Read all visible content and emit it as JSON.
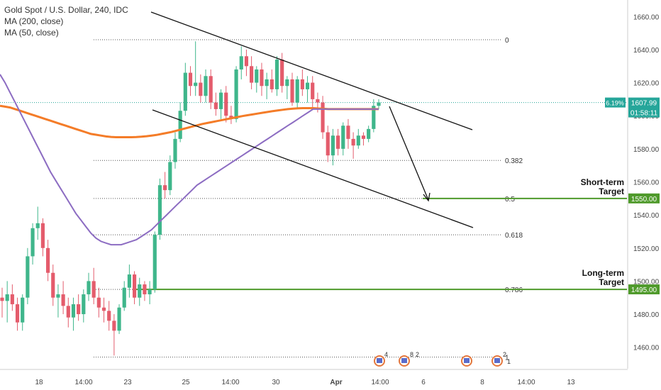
{
  "legend": {
    "title": "Gold Spot / U.S. Dollar, 240, IDC",
    "ma200": "MA (200, close)",
    "ma50": "MA (50, close)"
  },
  "colors": {
    "up": "#3fb68b",
    "down": "#e45c6c",
    "ma200": "#f47c28",
    "ma50": "#8c6cc2",
    "target": "#4f9a2b",
    "trend": "#111111",
    "fib": "#555555",
    "price_tag": "#26a69a"
  },
  "chart_data": {
    "type": "candlestick",
    "ylim": [
      1447,
      1670
    ],
    "y_ticks": [
      "1460.00",
      "1480.00",
      "1500.00",
      "1520.00",
      "1540.00",
      "1560.00",
      "1580.00",
      "1600.00",
      "1620.00",
      "1640.00",
      "1660.00"
    ],
    "x_ticks": [
      "18",
      "14:00",
      "23",
      "25",
      "14:00",
      "30",
      "Apr",
      "14:00",
      "6",
      "8",
      "14:00",
      "13"
    ],
    "grid": false,
    "current_price": {
      "value": "1607.99",
      "change": "6.19%",
      "countdown": "01:58:11",
      "price": 1608
    },
    "fib_levels": [
      {
        "label": "0",
        "price": 1646
      },
      {
        "label": "0.382",
        "price": 1573
      },
      {
        "label": "0.5",
        "price": 1550
      },
      {
        "label": "0.618",
        "price": 1528
      },
      {
        "label": "0.786",
        "price": 1495
      },
      {
        "label": "1",
        "price": 1454
      }
    ],
    "targets": [
      {
        "label1": "Short-term",
        "label2": "Target",
        "value": "1550.00",
        "price": 1550
      },
      {
        "label1": "Long-term",
        "label2": "Target",
        "value": "1495.00",
        "price": 1495
      }
    ],
    "event_labels": [
      "4",
      "8",
      "2",
      "2",
      "1"
    ],
    "candles": [
      {
        "o": 1490,
        "h": 1496,
        "l": 1478,
        "c": 1488
      },
      {
        "o": 1488,
        "h": 1500,
        "l": 1475,
        "c": 1492
      },
      {
        "o": 1492,
        "h": 1498,
        "l": 1482,
        "c": 1486
      },
      {
        "o": 1486,
        "h": 1490,
        "l": 1470,
        "c": 1475
      },
      {
        "o": 1475,
        "h": 1492,
        "l": 1470,
        "c": 1490
      },
      {
        "o": 1490,
        "h": 1520,
        "l": 1486,
        "c": 1515
      },
      {
        "o": 1515,
        "h": 1535,
        "l": 1510,
        "c": 1532
      },
      {
        "o": 1532,
        "h": 1545,
        "l": 1525,
        "c": 1535
      },
      {
        "o": 1535,
        "h": 1538,
        "l": 1515,
        "c": 1520
      },
      {
        "o": 1520,
        "h": 1525,
        "l": 1500,
        "c": 1505
      },
      {
        "o": 1505,
        "h": 1510,
        "l": 1485,
        "c": 1490
      },
      {
        "o": 1490,
        "h": 1498,
        "l": 1478,
        "c": 1492
      },
      {
        "o": 1492,
        "h": 1500,
        "l": 1480,
        "c": 1485
      },
      {
        "o": 1485,
        "h": 1490,
        "l": 1472,
        "c": 1478
      },
      {
        "o": 1478,
        "h": 1490,
        "l": 1470,
        "c": 1486
      },
      {
        "o": 1486,
        "h": 1492,
        "l": 1476,
        "c": 1480
      },
      {
        "o": 1480,
        "h": 1495,
        "l": 1475,
        "c": 1492
      },
      {
        "o": 1492,
        "h": 1505,
        "l": 1488,
        "c": 1500
      },
      {
        "o": 1500,
        "h": 1508,
        "l": 1486,
        "c": 1490
      },
      {
        "o": 1490,
        "h": 1496,
        "l": 1478,
        "c": 1484
      },
      {
        "o": 1484,
        "h": 1490,
        "l": 1475,
        "c": 1482
      },
      {
        "o": 1482,
        "h": 1488,
        "l": 1470,
        "c": 1476
      },
      {
        "o": 1476,
        "h": 1480,
        "l": 1455,
        "c": 1470
      },
      {
        "o": 1470,
        "h": 1486,
        "l": 1468,
        "c": 1484
      },
      {
        "o": 1484,
        "h": 1500,
        "l": 1482,
        "c": 1496
      },
      {
        "o": 1496,
        "h": 1510,
        "l": 1490,
        "c": 1504
      },
      {
        "o": 1504,
        "h": 1506,
        "l": 1486,
        "c": 1490
      },
      {
        "o": 1490,
        "h": 1502,
        "l": 1485,
        "c": 1498
      },
      {
        "o": 1498,
        "h": 1500,
        "l": 1488,
        "c": 1492
      },
      {
        "o": 1492,
        "h": 1500,
        "l": 1486,
        "c": 1495
      },
      {
        "o": 1495,
        "h": 1530,
        "l": 1493,
        "c": 1528
      },
      {
        "o": 1528,
        "h": 1562,
        "l": 1525,
        "c": 1558
      },
      {
        "o": 1558,
        "h": 1566,
        "l": 1550,
        "c": 1555
      },
      {
        "o": 1555,
        "h": 1576,
        "l": 1552,
        "c": 1572
      },
      {
        "o": 1572,
        "h": 1590,
        "l": 1568,
        "c": 1586
      },
      {
        "o": 1586,
        "h": 1608,
        "l": 1584,
        "c": 1603
      },
      {
        "o": 1603,
        "h": 1632,
        "l": 1600,
        "c": 1626
      },
      {
        "o": 1626,
        "h": 1630,
        "l": 1612,
        "c": 1618
      },
      {
        "o": 1618,
        "h": 1645,
        "l": 1612,
        "c": 1620
      },
      {
        "o": 1620,
        "h": 1625,
        "l": 1608,
        "c": 1612
      },
      {
        "o": 1612,
        "h": 1628,
        "l": 1608,
        "c": 1624
      },
      {
        "o": 1624,
        "h": 1628,
        "l": 1604,
        "c": 1608
      },
      {
        "o": 1608,
        "h": 1614,
        "l": 1600,
        "c": 1604
      },
      {
        "o": 1604,
        "h": 1616,
        "l": 1598,
        "c": 1614
      },
      {
        "o": 1614,
        "h": 1618,
        "l": 1596,
        "c": 1600
      },
      {
        "o": 1600,
        "h": 1606,
        "l": 1595,
        "c": 1598
      },
      {
        "o": 1598,
        "h": 1630,
        "l": 1596,
        "c": 1628
      },
      {
        "o": 1628,
        "h": 1642,
        "l": 1622,
        "c": 1636
      },
      {
        "o": 1636,
        "h": 1640,
        "l": 1624,
        "c": 1630
      },
      {
        "o": 1630,
        "h": 1636,
        "l": 1616,
        "c": 1620
      },
      {
        "o": 1620,
        "h": 1630,
        "l": 1614,
        "c": 1628
      },
      {
        "o": 1628,
        "h": 1632,
        "l": 1612,
        "c": 1618
      },
      {
        "o": 1618,
        "h": 1626,
        "l": 1610,
        "c": 1622
      },
      {
        "o": 1622,
        "h": 1628,
        "l": 1614,
        "c": 1616
      },
      {
        "o": 1616,
        "h": 1636,
        "l": 1612,
        "c": 1634
      },
      {
        "o": 1634,
        "h": 1638,
        "l": 1614,
        "c": 1618
      },
      {
        "o": 1618,
        "h": 1624,
        "l": 1610,
        "c": 1622
      },
      {
        "o": 1622,
        "h": 1626,
        "l": 1606,
        "c": 1608
      },
      {
        "o": 1608,
        "h": 1624,
        "l": 1604,
        "c": 1622
      },
      {
        "o": 1622,
        "h": 1628,
        "l": 1612,
        "c": 1616
      },
      {
        "o": 1616,
        "h": 1624,
        "l": 1608,
        "c": 1620
      },
      {
        "o": 1620,
        "h": 1624,
        "l": 1604,
        "c": 1610
      },
      {
        "o": 1610,
        "h": 1614,
        "l": 1602,
        "c": 1608
      },
      {
        "o": 1608,
        "h": 1612,
        "l": 1586,
        "c": 1590
      },
      {
        "o": 1590,
        "h": 1594,
        "l": 1572,
        "c": 1576
      },
      {
        "o": 1576,
        "h": 1592,
        "l": 1570,
        "c": 1588
      },
      {
        "o": 1588,
        "h": 1592,
        "l": 1576,
        "c": 1580
      },
      {
        "o": 1580,
        "h": 1596,
        "l": 1576,
        "c": 1594
      },
      {
        "o": 1594,
        "h": 1598,
        "l": 1580,
        "c": 1586
      },
      {
        "o": 1586,
        "h": 1590,
        "l": 1574,
        "c": 1582
      },
      {
        "o": 1582,
        "h": 1592,
        "l": 1580,
        "c": 1588
      },
      {
        "o": 1588,
        "h": 1590,
        "l": 1582,
        "c": 1586
      },
      {
        "o": 1586,
        "h": 1594,
        "l": 1584,
        "c": 1592
      },
      {
        "o": 1592,
        "h": 1610,
        "l": 1590,
        "c": 1606
      },
      {
        "o": 1606,
        "h": 1610,
        "l": 1604,
        "c": 1608
      }
    ],
    "ma200": [
      1606,
      1605.5,
      1605,
      1604,
      1603,
      1602,
      1601,
      1600,
      1599,
      1598,
      1597,
      1596,
      1595,
      1594,
      1593,
      1592,
      1591,
      1590,
      1589,
      1588.5,
      1588,
      1587.5,
      1587.2,
      1587,
      1587,
      1587,
      1587,
      1587.1,
      1587.3,
      1587.6,
      1588,
      1588.4,
      1589,
      1589.6,
      1590.2,
      1591,
      1591.8,
      1592.6,
      1593.4,
      1594.2,
      1595,
      1595.6,
      1596.2,
      1596.8,
      1597.4,
      1598,
      1598.6,
      1599.2,
      1599.8,
      1600.3,
      1600.8,
      1601.3,
      1601.8,
      1602.3,
      1602.8,
      1603.2,
      1603.6,
      1604,
      1604.3,
      1604.5,
      1604.6,
      1604.6,
      1604.6,
      1604.4,
      1604.2,
      1604,
      1604,
      1604,
      1604,
      1604,
      1604,
      1604,
      1604,
      1604,
      1604,
      1604
    ],
    "ma50": [
      1625,
      1620,
      1614,
      1608,
      1602,
      1596,
      1590,
      1584,
      1578,
      1572,
      1566,
      1561,
      1556,
      1551,
      1546,
      1541,
      1537,
      1533,
      1529,
      1526,
      1524,
      1523,
      1522,
      1522,
      1522,
      1523,
      1524,
      1525,
      1527,
      1529,
      1531,
      1534,
      1537,
      1540,
      1543,
      1546,
      1549,
      1552,
      1555,
      1558,
      1560,
      1562,
      1564,
      1566,
      1568,
      1570,
      1572,
      1574,
      1576,
      1578,
      1580,
      1582,
      1584,
      1586,
      1588,
      1590,
      1592,
      1594,
      1596,
      1598,
      1600,
      1602,
      1604,
      1604,
      1604,
      1604,
      1604,
      1604,
      1604,
      1604,
      1604,
      1604,
      1604,
      1604,
      1604,
      1604
    ]
  }
}
